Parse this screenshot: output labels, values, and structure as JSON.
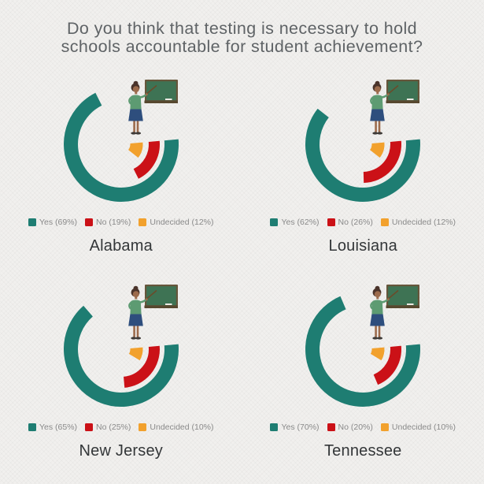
{
  "title": {
    "line1": "Do you think that testing is necessary to hold",
    "line2": "schools accountable for student achievement?"
  },
  "legend_meta": {
    "start_angle_deg": 85,
    "rings": [
      {
        "key": "yes",
        "label": "Yes",
        "color": "#1E7D72",
        "radius": 64,
        "stroke": 18
      },
      {
        "key": "no",
        "label": "No",
        "color": "#CB1117",
        "radius": 42,
        "stroke": 14
      },
      {
        "key": "undecided",
        "label": "Undecided",
        "color": "#F2A12D",
        "radius": 19.5,
        "stroke": 16
      }
    ]
  },
  "chart_data": [
    {
      "type": "donut",
      "state": "Alabama",
      "values": {
        "yes": 69,
        "no": 19,
        "undecided": 12
      },
      "legend": [
        "Yes (69%)",
        "No (19%)",
        "Undecided (12%)"
      ]
    },
    {
      "type": "donut",
      "state": "Louisiana",
      "values": {
        "yes": 62,
        "no": 26,
        "undecided": 12
      },
      "legend": [
        "Yes (62%)",
        "No (26%)",
        "Undecided (12%)"
      ]
    },
    {
      "type": "donut",
      "state": "New Jersey",
      "values": {
        "yes": 65,
        "no": 25,
        "undecided": 10
      },
      "legend": [
        "Yes (65%)",
        "No (25%)",
        "Undecided (10%)"
      ]
    },
    {
      "type": "donut",
      "state": "Tennessee",
      "values": {
        "yes": 70,
        "no": 20,
        "undecided": 10
      },
      "legend": [
        "Yes (70%)",
        "No (20%)",
        "Undecided (10%)"
      ]
    }
  ]
}
